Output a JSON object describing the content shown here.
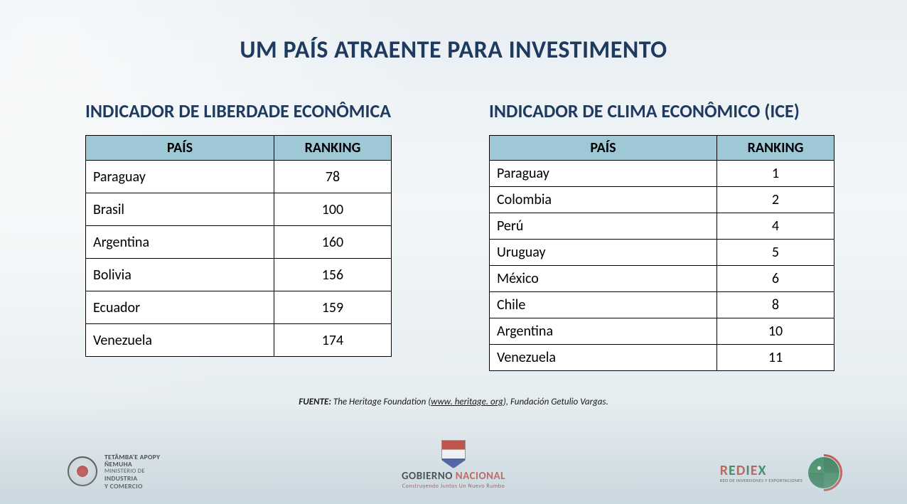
{
  "title": "UM PAÍS ATRAENTE PARA INVESTIMENTO",
  "left": {
    "subtitle": "INDICADOR DE LIBERDADE ECONÔMICA",
    "header_country": "PAÍS",
    "header_rank": "RANKING",
    "rows": [
      {
        "country": "Paraguay",
        "rank": "78"
      },
      {
        "country": "Brasil",
        "rank": "100"
      },
      {
        "country": "Argentina",
        "rank": "160"
      },
      {
        "country": "Bolivia",
        "rank": "156"
      },
      {
        "country": "Ecuador",
        "rank": "159"
      },
      {
        "country": "Venezuela",
        "rank": "174"
      }
    ]
  },
  "right": {
    "subtitle": "INDICADOR DE CLIMA ECONÔMICO (ICE)",
    "header_country": "PAÍS",
    "header_rank": "RANKING",
    "rows": [
      {
        "country": "Paraguay",
        "rank": "1"
      },
      {
        "country": "Colombia",
        "rank": "2"
      },
      {
        "country": "Perú",
        "rank": "4"
      },
      {
        "country": "Uruguay",
        "rank": "5"
      },
      {
        "country": "México",
        "rank": "6"
      },
      {
        "country": "Chile",
        "rank": "8"
      },
      {
        "country": "Argentina",
        "rank": "10"
      },
      {
        "country": "Venezuela",
        "rank": "11"
      }
    ]
  },
  "source": {
    "label": "FUENTE:",
    "text1": " The Heritage Foundation (",
    "url": "www. heritage. org",
    "text2": "), Fundación Getulio Vargas."
  },
  "footer": {
    "ministry_line1": "TETÃMBA'E APOPY",
    "ministry_line2": "ÑEMUHA",
    "ministry_line3": "MINISTERIO DE",
    "ministry_line4": "INDUSTRIA",
    "ministry_line5": "Y COMERCIO",
    "gobierno": "GOBIERNO",
    "nacional": " NACIONAL",
    "gobierno_sub": "Construyendo Juntos Un Nuevo Rumbo",
    "rediex": "REDIEX",
    "rediex_sub": "RED DE INVERSIONES Y EXPORTACIONES"
  },
  "style": {
    "title_color": "#1f3a5f",
    "header_bg": "#9ec8d6",
    "border_color": "#000000",
    "cell_bg": "#ffffff",
    "title_fontsize": 34,
    "subtitle_fontsize": 26,
    "cell_fontsize": 20
  }
}
